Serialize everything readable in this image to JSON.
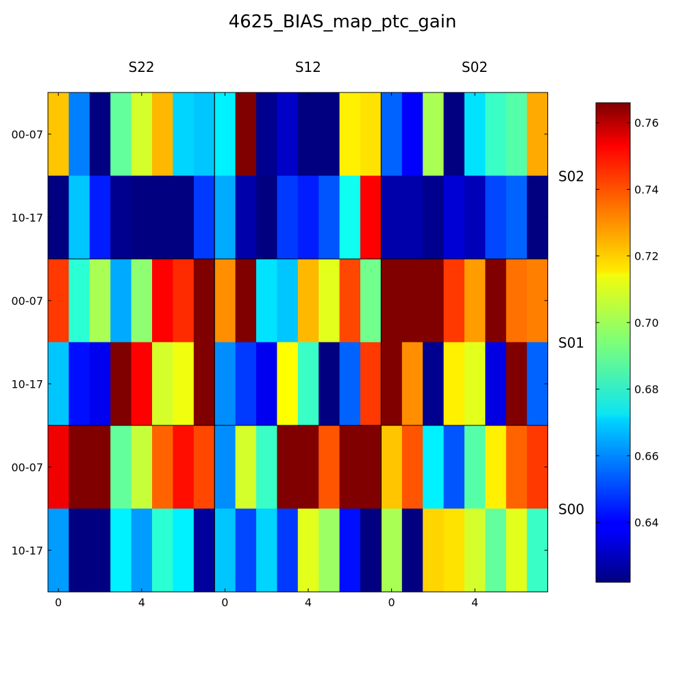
{
  "chart_data": {
    "type": "heatmap",
    "title": "4625_BIAS_map_ptc_gain",
    "column_groups": [
      "S22",
      "S12",
      "S02"
    ],
    "row_groups": [
      "S02",
      "S01",
      "S00"
    ],
    "row_labels": [
      "00-07",
      "10-17",
      "00-07",
      "10-17",
      "00-07",
      "10-17"
    ],
    "x_ticks": [
      "0",
      "4",
      "0",
      "4",
      "0",
      "4"
    ],
    "colorbar": {
      "min": 0.622,
      "max": 0.766,
      "ticks": [
        "0.64",
        "0.66",
        "0.68",
        "0.70",
        "0.72",
        "0.74",
        "0.76"
      ],
      "colormap": "jet"
    },
    "values": [
      [
        0.72,
        0.658,
        0.622,
        0.69,
        0.706,
        0.722,
        0.67,
        0.668,
        0.674,
        0.766,
        0.624,
        0.632,
        0.622,
        0.622,
        0.714,
        0.716,
        0.654,
        0.64,
        0.7,
        0.622,
        0.672,
        0.684,
        0.688,
        0.724
      ],
      [
        0.622,
        0.668,
        0.644,
        0.624,
        0.622,
        0.622,
        0.622,
        0.648,
        0.664,
        0.628,
        0.622,
        0.648,
        0.644,
        0.652,
        0.678,
        0.748,
        0.628,
        0.628,
        0.624,
        0.634,
        0.63,
        0.65,
        0.654,
        0.622
      ],
      [
        0.74,
        0.682,
        0.7,
        0.664,
        0.696,
        0.748,
        0.742,
        0.766,
        0.728,
        0.766,
        0.672,
        0.668,
        0.722,
        0.708,
        0.738,
        0.692,
        0.766,
        0.766,
        0.766,
        0.74,
        0.726,
        0.766,
        0.732,
        0.73
      ],
      [
        0.668,
        0.642,
        0.638,
        0.766,
        0.748,
        0.706,
        0.71,
        0.766,
        0.66,
        0.648,
        0.638,
        0.712,
        0.684,
        0.622,
        0.654,
        0.74,
        0.766,
        0.728,
        0.624,
        0.714,
        0.708,
        0.636,
        0.766,
        0.654
      ],
      [
        0.75,
        0.766,
        0.766,
        0.69,
        0.704,
        0.734,
        0.746,
        0.738,
        0.66,
        0.706,
        0.684,
        0.766,
        0.766,
        0.736,
        0.766,
        0.766,
        0.72,
        0.736,
        0.674,
        0.652,
        0.688,
        0.714,
        0.734,
        0.74
      ],
      [
        0.662,
        0.622,
        0.622,
        0.674,
        0.662,
        0.682,
        0.674,
        0.626,
        0.668,
        0.65,
        0.67,
        0.648,
        0.708,
        0.698,
        0.642,
        0.622,
        0.7,
        0.622,
        0.718,
        0.716,
        0.706,
        0.69,
        0.708,
        0.684
      ]
    ]
  }
}
